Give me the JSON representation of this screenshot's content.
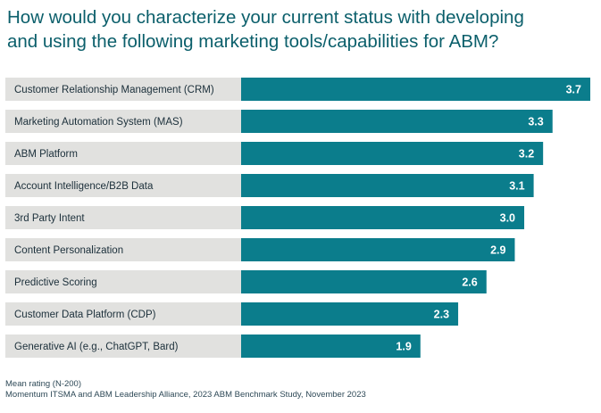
{
  "chart_data": {
    "type": "bar",
    "orientation": "horizontal",
    "title": "How would you characterize your current status with developing\nand using the following marketing tools/capabilities for ABM?",
    "categories": [
      "Customer Relationship Management (CRM)",
      "Marketing Automation System (MAS)",
      "ABM Platform",
      "Account Intelligence/B2B Data",
      "3rd Party Intent",
      "Content Personalization",
      "Predictive Scoring",
      "Customer Data Platform (CDP)",
      "Generative AI (e.g., ChatGPT, Bard)"
    ],
    "values": [
      3.7,
      3.3,
      3.2,
      3.1,
      3.0,
      2.9,
      2.6,
      2.3,
      1.9
    ],
    "value_labels": [
      "3.7",
      "3.3",
      "3.2",
      "3.1",
      "3.0",
      "2.9",
      "2.6",
      "2.3",
      "1.9"
    ],
    "xlim": [
      0,
      3.7
    ],
    "grid": false,
    "legend": "none",
    "colors": {
      "bar": "#0b7d8c",
      "label_background": "#e1e1df",
      "title": "#0b5f6b",
      "label_text": "#1b2f3a",
      "value_text": "#ffffff"
    }
  },
  "footnotes": {
    "note": "Mean rating (N-200)",
    "source": "Momentum ITSMA and ABM Leadership Alliance, 2023 ABM Benchmark Study, November 2023"
  }
}
